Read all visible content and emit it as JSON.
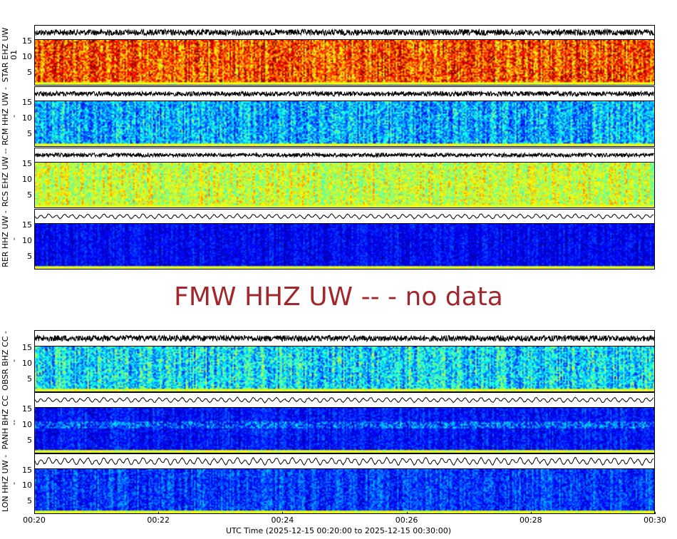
{
  "chart_data": {
    "type": "heatmap",
    "xlabel": "UTC Time (2025-12-15 00:20:00 to 2025-12-15 00:30:00)",
    "x_ticks": [
      "00:20",
      "00:22",
      "00:24",
      "00:26",
      "00:28",
      "00:30"
    ],
    "y_ticks": [
      "5",
      "10",
      "15"
    ],
    "ylim": [
      1,
      15.5
    ],
    "colormap": "jet",
    "panels": [
      {
        "label": "STAR EHZ UW 01",
        "has_data": true
      },
      {
        "label": "RCM HHZ UW --",
        "has_data": true
      },
      {
        "label": "RCS EHZ UW --",
        "has_data": true
      },
      {
        "label": "RER HHZ UW --",
        "has_data": true
      },
      {
        "label": "FMW HHZ UW -- - no data",
        "has_data": false
      },
      {
        "label": "OBSR BHZ CC --",
        "has_data": true
      },
      {
        "label": "PANH BHZ CC --",
        "has_data": true
      },
      {
        "label": "LON HHZ UW --",
        "has_data": true
      }
    ]
  },
  "colors": {
    "no_data_text": "#a0282c",
    "waveform": "#000000"
  }
}
